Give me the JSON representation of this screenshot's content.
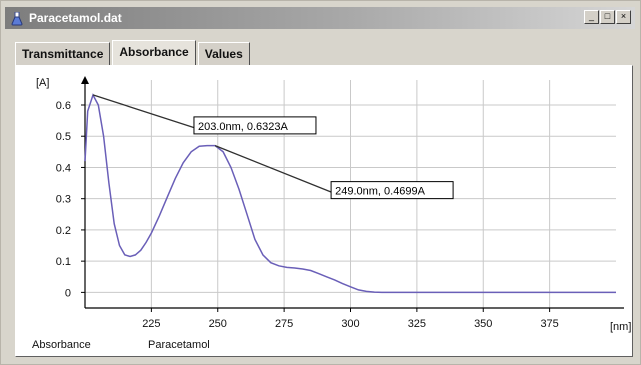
{
  "window": {
    "title": "Paracetamol.dat",
    "controls": [
      "_",
      "□",
      "×"
    ]
  },
  "tabs": [
    {
      "label": "Transmittance",
      "active": false
    },
    {
      "label": "Absorbance",
      "active": true
    },
    {
      "label": "Values",
      "active": false
    }
  ],
  "footer": {
    "left": "Absorbance",
    "right": "Paracetamol"
  },
  "colors": {
    "curve": "#6a5fb8",
    "grid": "#c9c9c9",
    "callout_line": "#303030"
  },
  "chart_data": {
    "type": "line",
    "title": "",
    "xlabel": "[nm]",
    "ylabel": "[A]",
    "xlim": [
      200,
      400
    ],
    "ylim": [
      -0.05,
      0.68
    ],
    "xticks": [
      225,
      250,
      275,
      300,
      325,
      350,
      375
    ],
    "yticks": [
      0,
      0.1,
      0.2,
      0.3,
      0.4,
      0.5,
      0.6
    ],
    "ytick_labels": [
      "0",
      "0.1",
      "0.2",
      "0.3",
      "0.4",
      "0.5",
      "0.6"
    ],
    "grid": true,
    "series": [
      {
        "x": [
          200,
          201,
          203,
          205,
          207,
          209,
          211,
          213,
          215,
          217,
          219,
          221,
          223,
          225,
          228,
          231,
          234,
          237,
          240,
          243,
          246,
          249,
          252,
          255,
          258,
          261,
          264,
          267,
          270,
          273,
          276,
          279,
          282,
          285,
          288,
          291,
          294,
          297,
          300,
          303,
          306,
          309,
          312,
          315,
          320,
          330,
          340,
          350,
          360,
          370,
          380,
          390,
          400
        ],
        "values": [
          0.42,
          0.58,
          0.632,
          0.6,
          0.5,
          0.35,
          0.22,
          0.15,
          0.12,
          0.115,
          0.12,
          0.135,
          0.16,
          0.19,
          0.245,
          0.305,
          0.365,
          0.415,
          0.45,
          0.468,
          0.47,
          0.4699,
          0.45,
          0.4,
          0.33,
          0.25,
          0.17,
          0.12,
          0.095,
          0.085,
          0.08,
          0.078,
          0.075,
          0.07,
          0.06,
          0.05,
          0.04,
          0.028,
          0.018,
          0.008,
          0.003,
          0.001,
          0.0,
          0.0,
          0.0,
          0.0,
          0.0,
          0.0,
          0.0,
          0.0,
          0.0,
          0.0,
          0.0
        ]
      }
    ],
    "annotations": [
      {
        "text": "203.0nm, 0.6323A",
        "x": 203.0,
        "y": 0.6323
      },
      {
        "text": "249.0nm, 0.4699A",
        "x": 249.0,
        "y": 0.4699
      }
    ]
  }
}
